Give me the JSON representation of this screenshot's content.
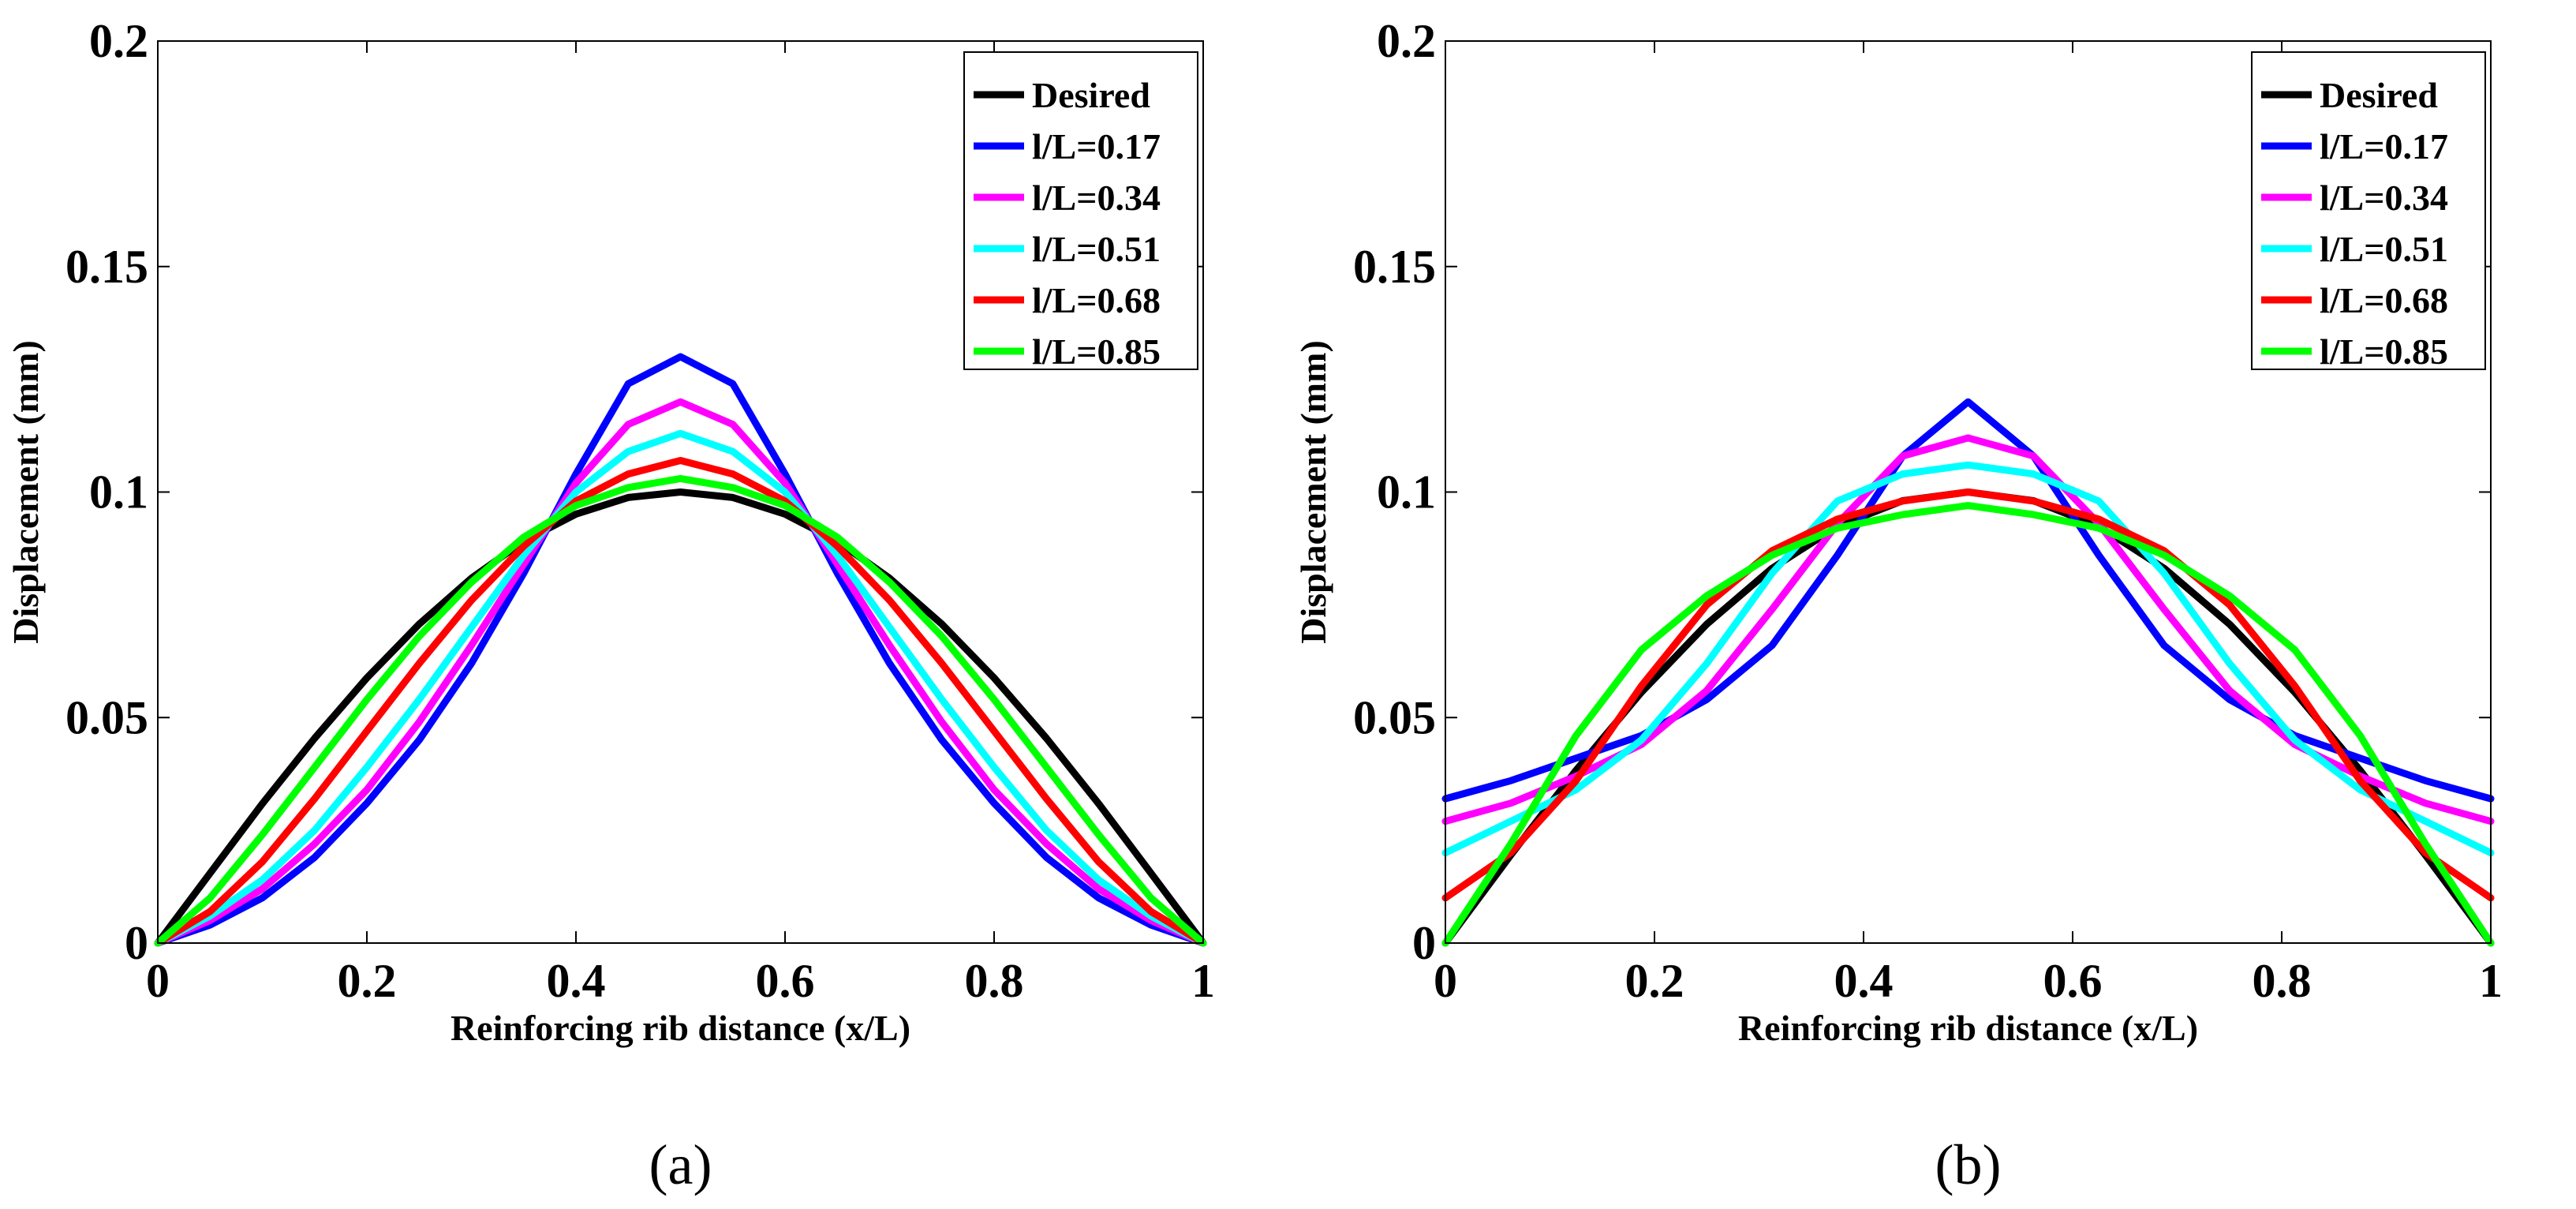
{
  "chart_data": [
    {
      "type": "line",
      "caption": "(a)",
      "title": "",
      "xlabel": "Reinforcing rib distance (x/L)",
      "ylabel": "Displacement (mm)",
      "xlim": [
        0,
        1
      ],
      "ylim": [
        0,
        0.2
      ],
      "xticks": [
        0,
        0.2,
        0.4,
        0.6,
        0.8,
        1
      ],
      "xtick_labels": [
        "0",
        "0.2",
        "0.4",
        "0.6",
        "0.8",
        "1"
      ],
      "yticks": [
        0,
        0.05,
        0.1,
        0.15,
        0.2
      ],
      "ytick_labels": [
        "0",
        "0.05",
        "0.1",
        "0.15",
        "0.2"
      ],
      "legend_position": "top-right",
      "x": [
        0,
        0.05,
        0.1,
        0.15,
        0.2,
        0.25,
        0.3,
        0.35,
        0.4,
        0.45,
        0.5,
        0.55,
        0.6,
        0.65,
        0.7,
        0.75,
        0.8,
        0.85,
        0.9,
        0.95,
        1
      ],
      "series": [
        {
          "name": "Desired",
          "color": "#000000",
          "values": [
            0,
            0.0155,
            0.0309,
            0.0454,
            0.0588,
            0.0707,
            0.0809,
            0.0891,
            0.0951,
            0.0988,
            0.1,
            0.0988,
            0.0951,
            0.0891,
            0.0809,
            0.0707,
            0.0588,
            0.0454,
            0.0309,
            0.0155,
            0
          ]
        },
        {
          "name": "l/L=0.17",
          "color": "#0000ff",
          "values": [
            0,
            0.004,
            0.01,
            0.019,
            0.031,
            0.045,
            0.062,
            0.082,
            0.104,
            0.124,
            0.13,
            0.124,
            0.104,
            0.082,
            0.062,
            0.045,
            0.031,
            0.019,
            0.01,
            0.004,
            0
          ]
        },
        {
          "name": "l/L=0.34",
          "color": "#ff00ff",
          "values": [
            0,
            0.005,
            0.012,
            0.022,
            0.034,
            0.049,
            0.066,
            0.084,
            0.102,
            0.115,
            0.12,
            0.115,
            0.102,
            0.084,
            0.066,
            0.049,
            0.034,
            0.022,
            0.012,
            0.005,
            0
          ]
        },
        {
          "name": "l/L=0.51",
          "color": "#00ffff",
          "values": [
            0,
            0.006,
            0.014,
            0.025,
            0.039,
            0.054,
            0.07,
            0.086,
            0.1,
            0.109,
            0.113,
            0.109,
            0.1,
            0.086,
            0.07,
            0.054,
            0.039,
            0.025,
            0.014,
            0.006,
            0
          ]
        },
        {
          "name": "l/L=0.68",
          "color": "#ff0000",
          "values": [
            0,
            0.007,
            0.018,
            0.032,
            0.047,
            0.062,
            0.076,
            0.088,
            0.098,
            0.104,
            0.107,
            0.104,
            0.098,
            0.088,
            0.076,
            0.062,
            0.047,
            0.032,
            0.018,
            0.007,
            0
          ]
        },
        {
          "name": "l/L=0.85",
          "color": "#00ff00",
          "values": [
            0,
            0.01,
            0.024,
            0.039,
            0.054,
            0.068,
            0.08,
            0.09,
            0.097,
            0.101,
            0.103,
            0.101,
            0.097,
            0.09,
            0.08,
            0.068,
            0.054,
            0.039,
            0.024,
            0.01,
            0
          ]
        }
      ]
    },
    {
      "type": "line",
      "caption": "(b)",
      "title": "",
      "xlabel": "Reinforcing rib distance (x/L)",
      "ylabel": "Displacement (mm)",
      "xlim": [
        0,
        1
      ],
      "ylim": [
        0,
        0.2
      ],
      "xticks": [
        0,
        0.2,
        0.4,
        0.6,
        0.8,
        1
      ],
      "xtick_labels": [
        "0",
        "0.2",
        "0.4",
        "0.6",
        "0.8",
        "1"
      ],
      "yticks": [
        0,
        0.05,
        0.1,
        0.15,
        0.2
      ],
      "ytick_labels": [
        "0",
        "0.05",
        "0.1",
        "0.15",
        "0.2"
      ],
      "legend_position": "top-right",
      "x": [
        0,
        0.0625,
        0.125,
        0.1875,
        0.25,
        0.3125,
        0.375,
        0.4375,
        0.5,
        0.5625,
        0.625,
        0.6875,
        0.75,
        0.8125,
        0.875,
        0.9375,
        1
      ],
      "series": [
        {
          "name": "Desired",
          "color": "#000000",
          "values": [
            0,
            0.0195,
            0.0383,
            0.0556,
            0.0707,
            0.0831,
            0.0924,
            0.0981,
            0.1,
            0.0981,
            0.0924,
            0.0831,
            0.0707,
            0.0556,
            0.0383,
            0.0195,
            0
          ]
        },
        {
          "name": "l/L=0.17",
          "color": "#0000ff",
          "values": [
            0.032,
            0.036,
            0.041,
            0.046,
            0.054,
            0.066,
            0.086,
            0.108,
            0.12,
            0.108,
            0.086,
            0.066,
            0.054,
            0.046,
            0.041,
            0.036,
            0.032
          ]
        },
        {
          "name": "l/L=0.34",
          "color": "#ff00ff",
          "values": [
            0.027,
            0.031,
            0.037,
            0.044,
            0.056,
            0.074,
            0.093,
            0.108,
            0.112,
            0.108,
            0.093,
            0.074,
            0.056,
            0.044,
            0.037,
            0.031,
            0.027
          ]
        },
        {
          "name": "l/L=0.51",
          "color": "#00ffff",
          "values": [
            0.02,
            0.027,
            0.034,
            0.045,
            0.062,
            0.082,
            0.098,
            0.104,
            0.106,
            0.104,
            0.098,
            0.082,
            0.062,
            0.045,
            0.034,
            0.027,
            0.02
          ]
        },
        {
          "name": "l/L=0.68",
          "color": "#ff0000",
          "values": [
            0.01,
            0.02,
            0.036,
            0.057,
            0.075,
            0.087,
            0.094,
            0.098,
            0.1,
            0.098,
            0.094,
            0.087,
            0.075,
            0.057,
            0.036,
            0.02,
            0.01
          ]
        },
        {
          "name": "l/L=0.85",
          "color": "#00ff00",
          "values": [
            0,
            0.022,
            0.046,
            0.065,
            0.077,
            0.086,
            0.092,
            0.095,
            0.097,
            0.095,
            0.092,
            0.086,
            0.077,
            0.065,
            0.046,
            0.022,
            0
          ]
        }
      ]
    }
  ]
}
